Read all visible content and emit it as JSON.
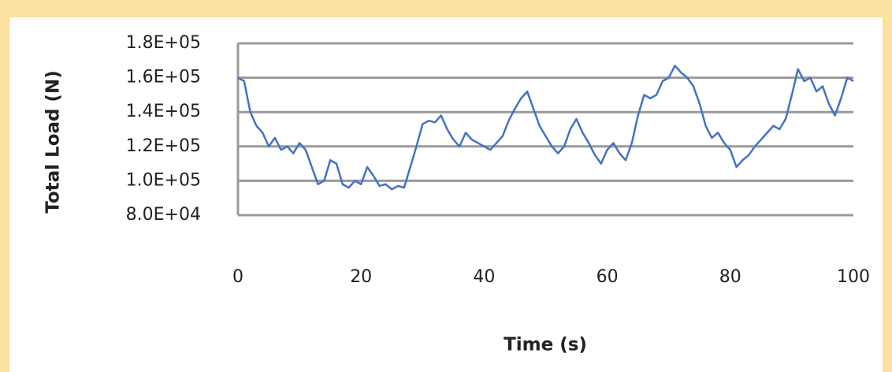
{
  "chart_data": {
    "type": "line",
    "xlabel": "Time (s)",
    "ylabel": "Total Load (N)",
    "x": [
      0,
      1,
      2,
      3,
      4,
      5,
      6,
      7,
      8,
      9,
      10,
      11,
      12,
      13,
      14,
      15,
      16,
      17,
      18,
      19,
      20,
      21,
      22,
      23,
      24,
      25,
      26,
      27,
      28,
      29,
      30,
      31,
      32,
      33,
      34,
      35,
      36,
      37,
      38,
      39,
      40,
      41,
      42,
      43,
      44,
      45,
      46,
      47,
      48,
      49,
      50,
      51,
      52,
      53,
      54,
      55,
      56,
      57,
      58,
      59,
      60,
      61,
      62,
      63,
      64,
      65,
      66,
      67,
      68,
      69,
      70,
      71,
      72,
      73,
      74,
      75,
      76,
      77,
      78,
      79,
      80,
      81,
      82,
      83,
      84,
      85,
      86,
      87,
      88,
      89,
      90,
      91,
      92,
      93,
      94,
      95,
      96,
      97,
      98,
      99,
      100
    ],
    "series": [
      {
        "name": "Total Load",
        "color": "#4472c4",
        "values": [
          160000,
          158000,
          140000,
          132000,
          128000,
          120000,
          125000,
          118000,
          120000,
          116000,
          122000,
          118000,
          108000,
          98000,
          100000,
          112000,
          110000,
          98000,
          96000,
          100000,
          98000,
          108000,
          103000,
          97000,
          98000,
          95000,
          97000,
          96000,
          108000,
          120000,
          133000,
          135000,
          134000,
          138000,
          130000,
          124000,
          120000,
          128000,
          124000,
          122000,
          120000,
          118000,
          122000,
          126000,
          135000,
          142000,
          148000,
          152000,
          142000,
          132000,
          126000,
          120000,
          116000,
          120000,
          130000,
          136000,
          128000,
          122000,
          115000,
          110000,
          118000,
          122000,
          116000,
          112000,
          122000,
          138000,
          150000,
          148000,
          150000,
          158000,
          160000,
          167000,
          163000,
          160000,
          155000,
          145000,
          132000,
          125000,
          128000,
          122000,
          118000,
          108000,
          112000,
          115000,
          120000,
          124000,
          128000,
          132000,
          130000,
          136000,
          150000,
          165000,
          158000,
          160000,
          152000,
          155000,
          145000,
          138000,
          148000,
          160000,
          158000
        ]
      }
    ],
    "xlim": [
      0,
      100
    ],
    "xticks": [
      0,
      20,
      40,
      60,
      80,
      100
    ],
    "ylim": [
      80000,
      180000
    ],
    "yticks": [
      {
        "value": 80000,
        "label": "8.0E+04"
      },
      {
        "value": 100000,
        "label": "1.0E+05"
      },
      {
        "value": 120000,
        "label": "1.2E+05"
      },
      {
        "value": 140000,
        "label": "1.4E+05"
      },
      {
        "value": 160000,
        "label": "1.6E+05"
      },
      {
        "value": 180000,
        "label": "1.8E+05"
      }
    ],
    "grid": true
  }
}
